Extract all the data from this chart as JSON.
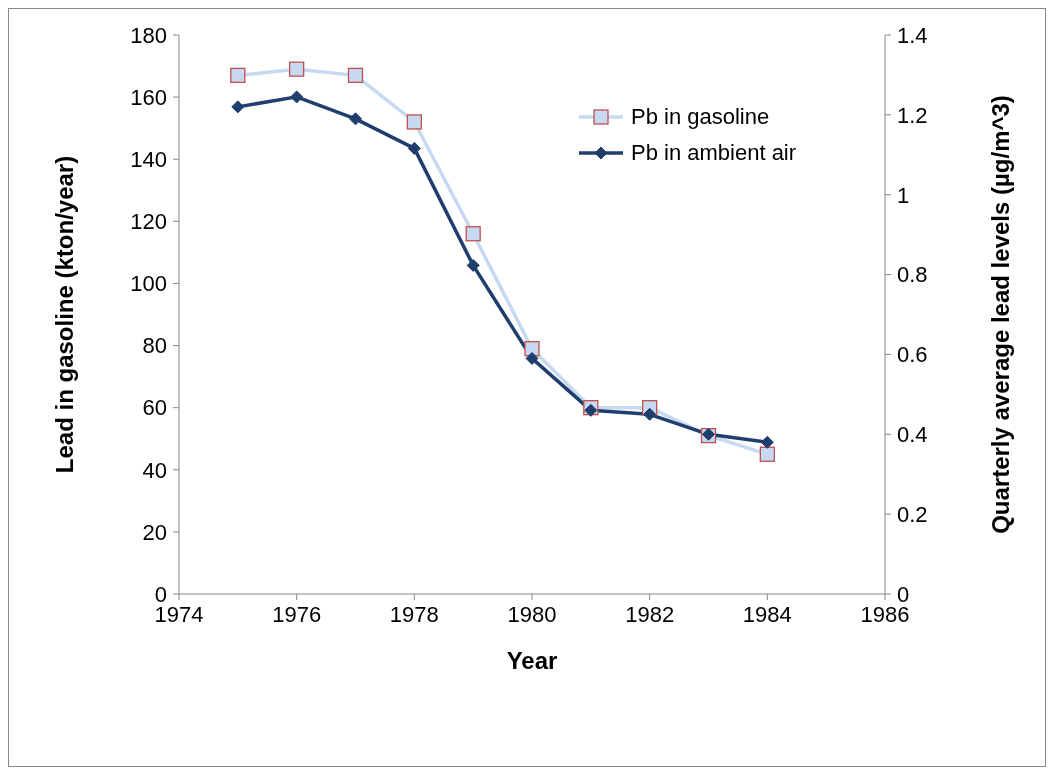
{
  "chart_data": {
    "type": "line",
    "xlabel": "Year",
    "ylabel": "Lead in gasoline (kton/year)",
    "y2label": "Quarterly average lead levels (µg/m^3)",
    "x": [
      1975,
      1976,
      1977,
      1978,
      1979,
      1980,
      1981,
      1982,
      1983,
      1984
    ],
    "series": [
      {
        "name": "Pb in gasoline",
        "color": "#c6d9f1",
        "marker": "square",
        "values": [
          167,
          169,
          167,
          152,
          116,
          79,
          60,
          60,
          51,
          45
        ]
      },
      {
        "name": "Pb in ambient air",
        "color": "#1f3e6e",
        "marker": "diamond",
        "axis": "y2",
        "values": [
          1.22,
          1.245,
          1.19,
          1.116,
          0.823,
          0.59,
          0.46,
          0.45,
          0.4,
          0.38
        ]
      }
    ],
    "xlim": [
      1974,
      1986
    ],
    "xticks": [
      1974,
      1976,
      1978,
      1980,
      1982,
      1984,
      1986
    ],
    "ylim": [
      0,
      180
    ],
    "yticks": [
      0,
      20,
      40,
      60,
      80,
      100,
      120,
      140,
      160,
      180
    ],
    "y2lim": [
      0,
      1.4
    ],
    "y2ticks": [
      0,
      0.2,
      0.4,
      0.6,
      0.8,
      1,
      1.2,
      1.4
    ],
    "grid": false,
    "legend": "top right"
  }
}
